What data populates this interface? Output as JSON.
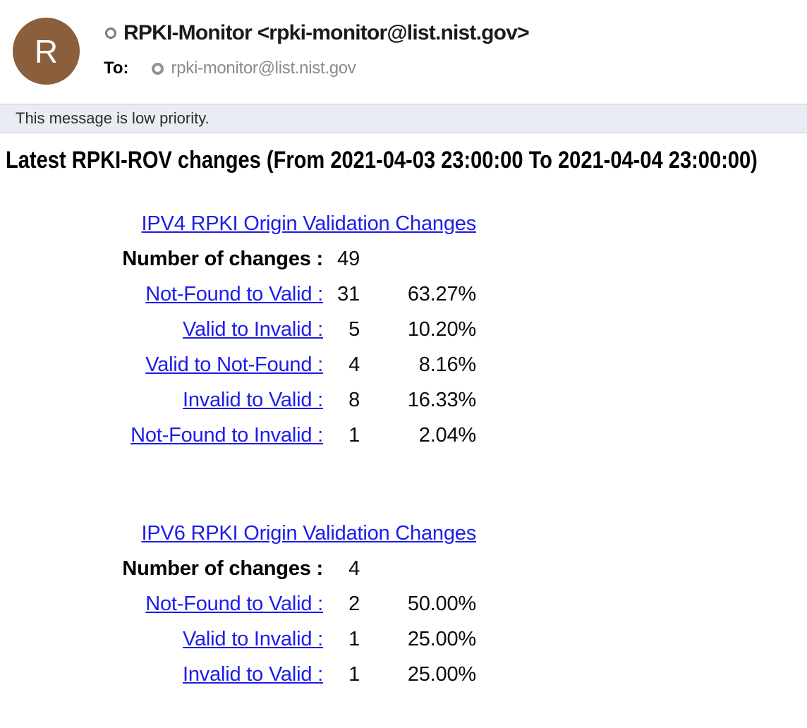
{
  "header": {
    "avatar_initial": "R",
    "sender": "RPKI-Monitor <rpki-monitor@list.nist.gov>",
    "to_label": "To:",
    "to_recipient": "rpki-monitor@list.nist.gov"
  },
  "banner": {
    "text": "This message is low priority."
  },
  "body": {
    "title": "Latest RPKI-ROV changes (From 2021-04-03 23:00:00 To 2021-04-04 23:00:00)"
  },
  "tables": [
    {
      "title": "IPV4 RPKI Origin Validation Changes",
      "summary_label": "Number of changes :",
      "summary_value": "49",
      "rows": [
        {
          "label": "Not-Found to Valid :",
          "count": "31",
          "pct": "63.27%"
        },
        {
          "label": "Valid to Invalid :",
          "count": "5",
          "pct": "10.20%"
        },
        {
          "label": "Valid to Not-Found :",
          "count": "4",
          "pct": "8.16%"
        },
        {
          "label": "Invalid to Valid :",
          "count": "8",
          "pct": "16.33%"
        },
        {
          "label": "Not-Found to Invalid :",
          "count": "1",
          "pct": "2.04%"
        }
      ]
    },
    {
      "title": "IPV6 RPKI Origin Validation Changes",
      "summary_label": "Number of changes :",
      "summary_value": "4",
      "rows": [
        {
          "label": "Not-Found to Valid :",
          "count": "2",
          "pct": "50.00%"
        },
        {
          "label": "Valid to Invalid :",
          "count": "1",
          "pct": "25.00%"
        },
        {
          "label": "Invalid to Valid :",
          "count": "1",
          "pct": "25.00%"
        }
      ]
    }
  ],
  "colors": {
    "avatar_bg": "#8B5E3C",
    "link_blue": "#1d1de8",
    "banner_bg": "#e9ecf2",
    "recipient_gray": "#8a8a8a"
  }
}
